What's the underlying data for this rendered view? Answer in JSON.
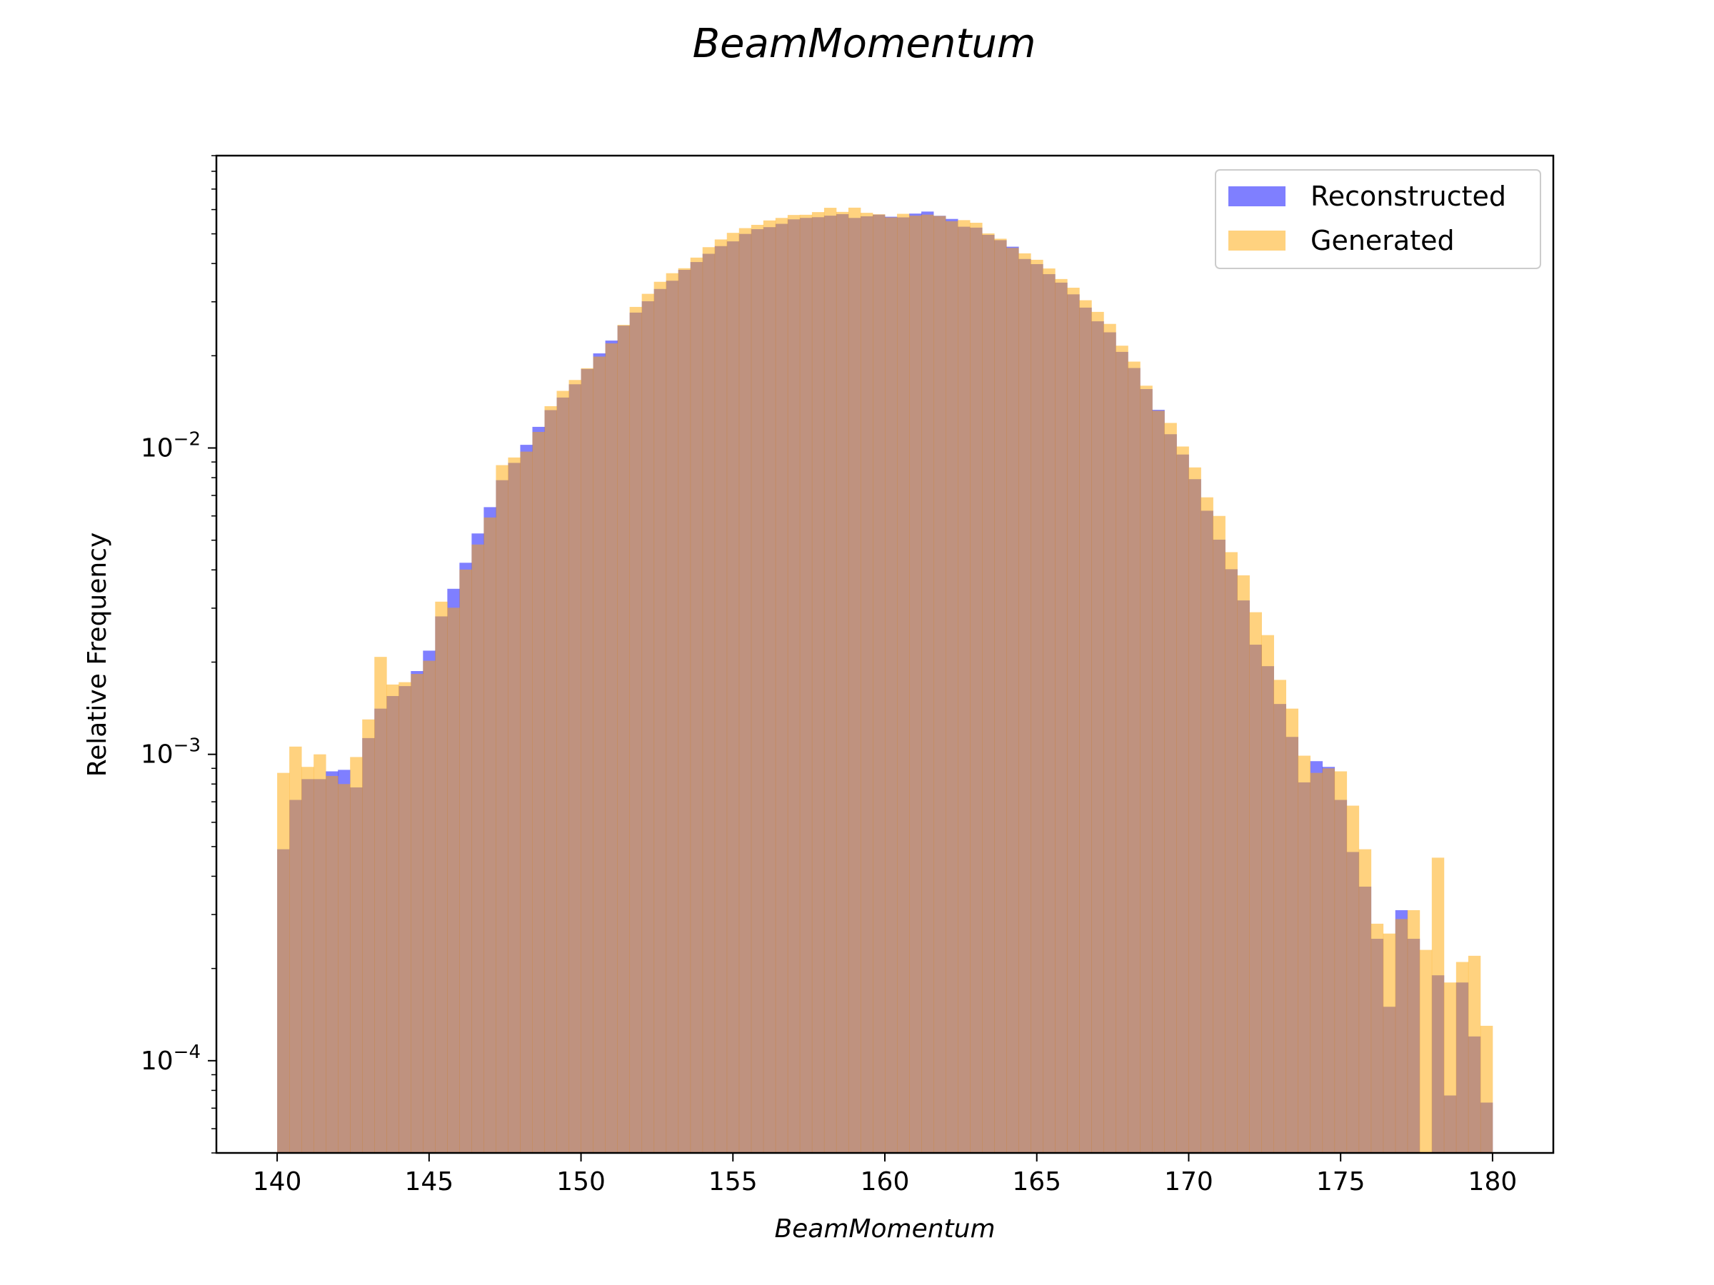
{
  "chart_data": {
    "type": "bar",
    "title": "BeamMomentum",
    "xlabel": "BeamMomentum",
    "ylabel": "Relative Frequency",
    "xlim": [
      138,
      182
    ],
    "ylim": [
      5e-05,
      0.09
    ],
    "yscale": "log",
    "bins": {
      "start": 140,
      "end": 180,
      "count": 100
    },
    "x_ticks": [
      140,
      145,
      150,
      155,
      160,
      165,
      170,
      175,
      180
    ],
    "y_ticks": [
      {
        "value": 0.0001,
        "base": "10",
        "exp": "−4"
      },
      {
        "value": 0.001,
        "base": "10",
        "exp": "−3"
      },
      {
        "value": 0.01,
        "base": "10",
        "exp": "−2"
      }
    ],
    "grid": false,
    "legend_position": "top-right",
    "series": [
      {
        "name": "Reconstructed",
        "color": "#0000ff",
        "opacity": 0.5,
        "values": [
          0.00049,
          0.00071,
          0.00083,
          0.00083,
          0.00088,
          0.00089,
          0.00078,
          0.00113,
          0.00141,
          0.00155,
          0.00167,
          0.00187,
          0.00218,
          0.00282,
          0.00347,
          0.00422,
          0.00526,
          0.00641,
          0.00785,
          0.00894,
          0.01024,
          0.01172,
          0.01329,
          0.01461,
          0.01614,
          0.01811,
          0.02036,
          0.02242,
          0.02508,
          0.02766,
          0.03012,
          0.03304,
          0.03515,
          0.03815,
          0.04045,
          0.04304,
          0.04559,
          0.04725,
          0.04997,
          0.05178,
          0.05258,
          0.05391,
          0.05575,
          0.05637,
          0.05666,
          0.05732,
          0.05798,
          0.05635,
          0.05704,
          0.05777,
          0.05686,
          0.05658,
          0.05822,
          0.05911,
          0.05727,
          0.05592,
          0.05275,
          0.05239,
          0.04962,
          0.04767,
          0.04539,
          0.04139,
          0.03982,
          0.03693,
          0.03465,
          0.03173,
          0.02872,
          0.02591,
          0.02385,
          0.02059,
          0.01824,
          0.01557,
          0.01332,
          0.01109,
          0.00952,
          0.00791,
          0.00624,
          0.00502,
          0.00402,
          0.00318,
          0.00228,
          0.00194,
          0.00146,
          0.00114,
          0.00081,
          0.00095,
          0.00091,
          0.00071,
          0.00048,
          0.00037,
          0.00025,
          0.00015,
          0.00031,
          0.00025,
          4.2e-05,
          0.00019,
          7.7e-05,
          0.00018,
          0.00012,
          7.3e-05
        ]
      },
      {
        "name": "Generated",
        "color": "#ffa500",
        "opacity": 0.5,
        "values": [
          0.00087,
          0.00106,
          0.00091,
          0.001,
          0.00085,
          0.0008,
          0.00098,
          0.0013,
          0.00208,
          0.00169,
          0.00172,
          0.00183,
          0.00202,
          0.00315,
          0.00301,
          0.00401,
          0.00484,
          0.00593,
          0.00879,
          0.00931,
          0.00973,
          0.01128,
          0.01369,
          0.01536,
          0.01667,
          0.01821,
          0.01987,
          0.02195,
          0.02522,
          0.02887,
          0.03185,
          0.03487,
          0.03719,
          0.03861,
          0.04182,
          0.04523,
          0.04793,
          0.05037,
          0.05219,
          0.05349,
          0.05529,
          0.05635,
          0.05761,
          0.0577,
          0.05887,
          0.06081,
          0.05896,
          0.06087,
          0.05856,
          0.05791,
          0.05656,
          0.05811,
          0.05731,
          0.05775,
          0.05719,
          0.055,
          0.05542,
          0.05434,
          0.05015,
          0.04819,
          0.04499,
          0.04318,
          0.04114,
          0.03854,
          0.0356,
          0.03335,
          0.03035,
          0.02781,
          0.02541,
          0.02157,
          0.01914,
          0.01597,
          0.01323,
          0.01207,
          0.01011,
          0.00864,
          0.0069,
          0.006,
          0.00457,
          0.00384,
          0.00291,
          0.00245,
          0.00175,
          0.00141,
          0.00099,
          0.00087,
          0.0009,
          0.00088,
          0.00068,
          0.00049,
          0.00028,
          0.00026,
          0.00029,
          0.00031,
          0.00023,
          0.00046,
          0.00018,
          0.00021,
          0.00022,
          0.00013
        ]
      }
    ]
  }
}
